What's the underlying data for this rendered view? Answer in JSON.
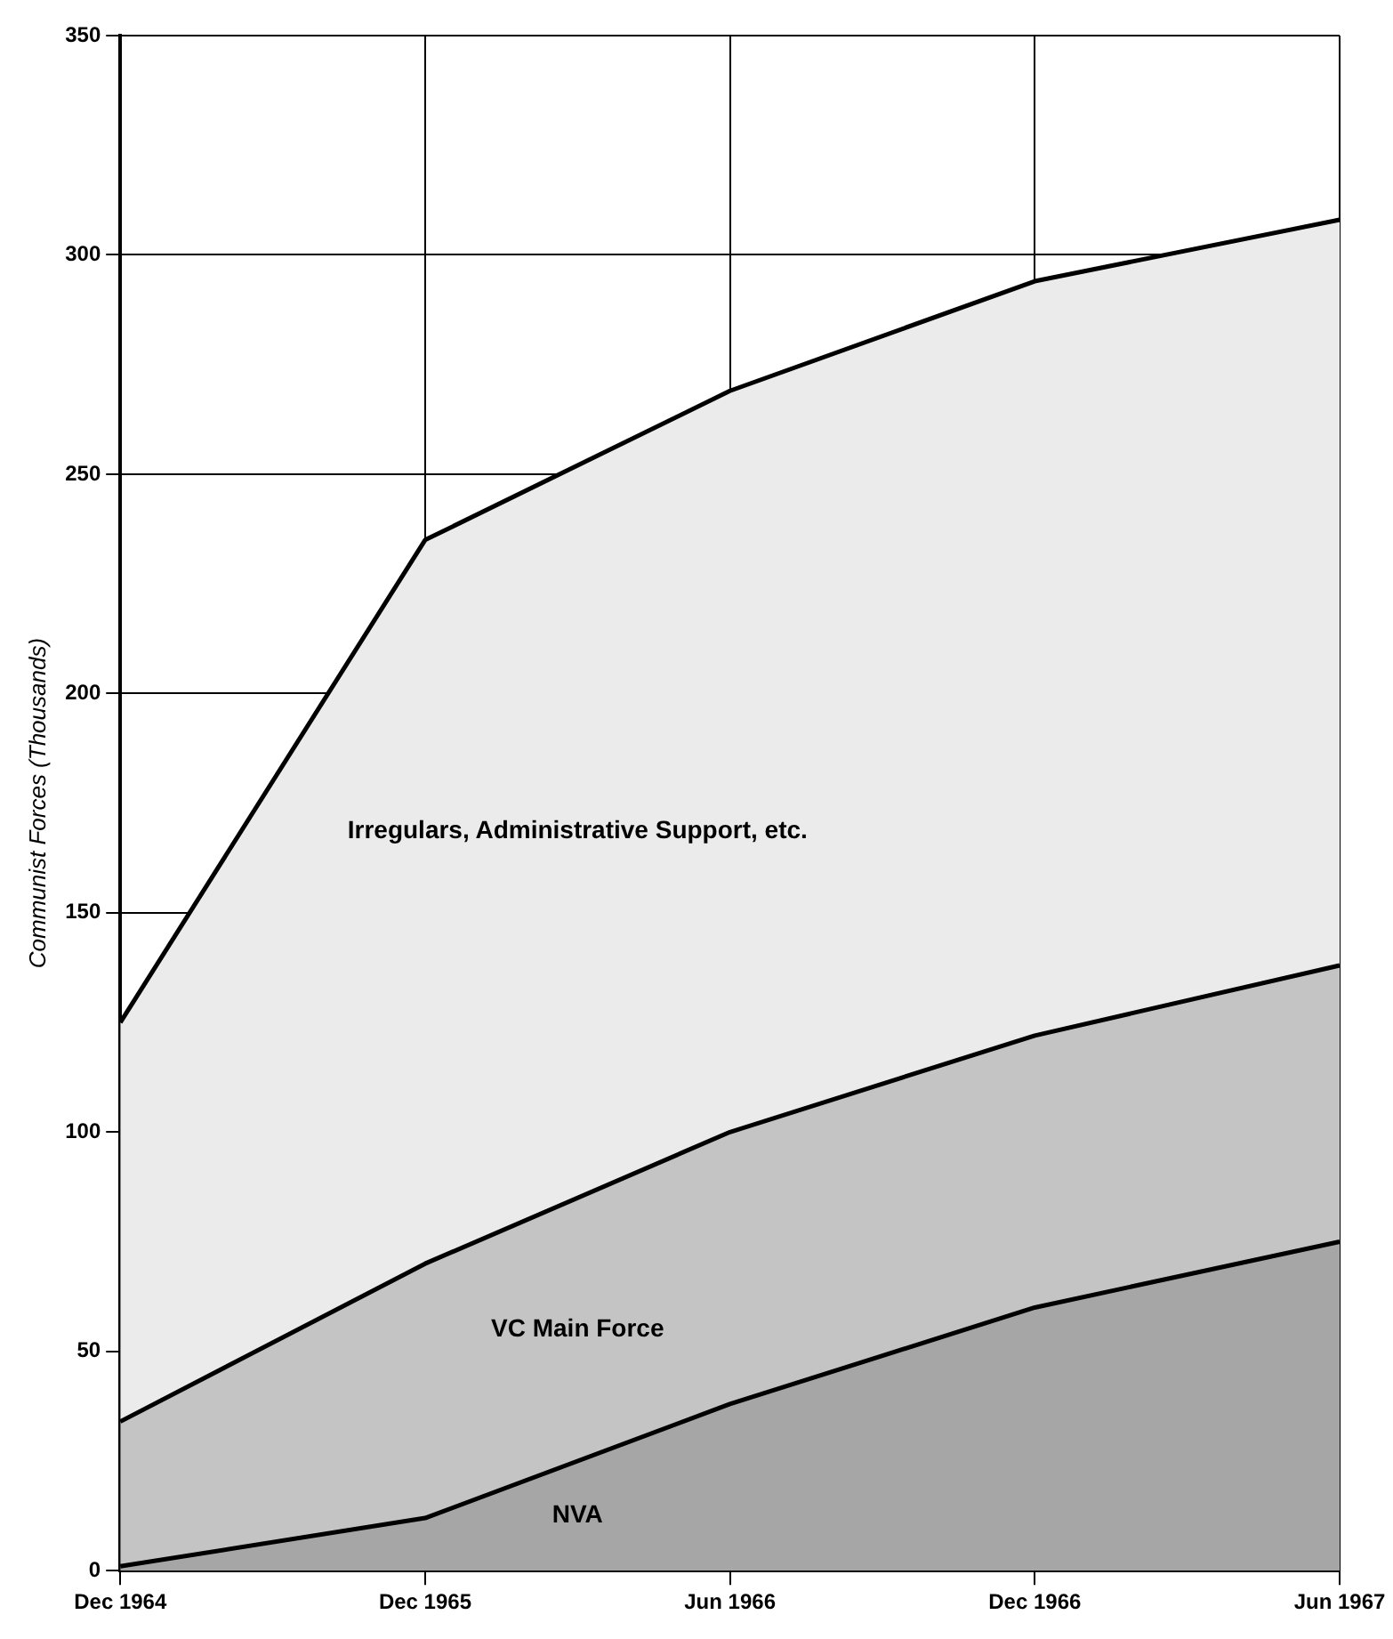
{
  "chart_data": {
    "type": "area",
    "stacked": true,
    "ylabel": "Communist Forces (Thousands)",
    "categories": [
      "Dec 1964",
      "Dec 1965",
      "Jun 1966",
      "Dec 1966",
      "Jun 1967"
    ],
    "series": [
      {
        "name": "NVA",
        "color": "#a6a6a6",
        "values": [
          1,
          12,
          38,
          60,
          75
        ]
      },
      {
        "name": "VC Main Force",
        "color": "#c4c4c4",
        "values": [
          33,
          58,
          62,
          62,
          63
        ]
      },
      {
        "name": "Irregulars, Administrative Support, etc.",
        "color": "#ebebeb",
        "values": [
          91,
          165,
          169,
          172,
          170
        ]
      }
    ],
    "ylim": [
      0,
      350
    ],
    "yticks": [
      0,
      50,
      100,
      150,
      200,
      250,
      300,
      350
    ],
    "grid": true,
    "legend": false
  }
}
